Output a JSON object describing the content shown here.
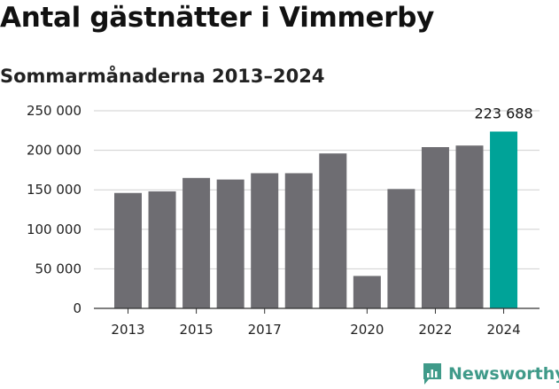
{
  "title": "Antal gästnätter i Vimmerby",
  "subtitle": "Sommarmånaderna 2013–2024",
  "brand": "Newsworthy",
  "colors": {
    "bar": "#6e6d72",
    "highlight": "#00a398",
    "grid": "#cfcfcf",
    "brand": "#3f9a89"
  },
  "chart_data": {
    "type": "bar",
    "title": "Antal gästnätter i Vimmerby",
    "subtitle": "Sommarmånaderna 2013–2024",
    "categories": [
      "2013",
      "2014",
      "2015",
      "2016",
      "2017",
      "2018",
      "2019",
      "2020",
      "2021",
      "2022",
      "2023",
      "2024"
    ],
    "values": [
      146000,
      148000,
      165000,
      163000,
      171000,
      171000,
      196000,
      41000,
      151000,
      204000,
      206000,
      223688
    ],
    "highlight_index": 11,
    "ylim": [
      0,
      250000
    ],
    "yticks": [
      0,
      50000,
      100000,
      150000,
      200000,
      250000
    ],
    "ytick_labels": [
      "0",
      "50 000",
      "100 000",
      "150 000",
      "200 000",
      "250 000"
    ],
    "xtick_labels": [
      {
        "index": 0,
        "label": "2013"
      },
      {
        "index": 2,
        "label": "2015"
      },
      {
        "index": 4,
        "label": "2017"
      },
      {
        "index": 7,
        "label": "2020"
      },
      {
        "index": 9,
        "label": "2022"
      },
      {
        "index": 11,
        "label": "2024"
      }
    ],
    "value_labels": [
      {
        "index": 11,
        "label": "223 688"
      }
    ],
    "grid": true,
    "legend": "none"
  }
}
